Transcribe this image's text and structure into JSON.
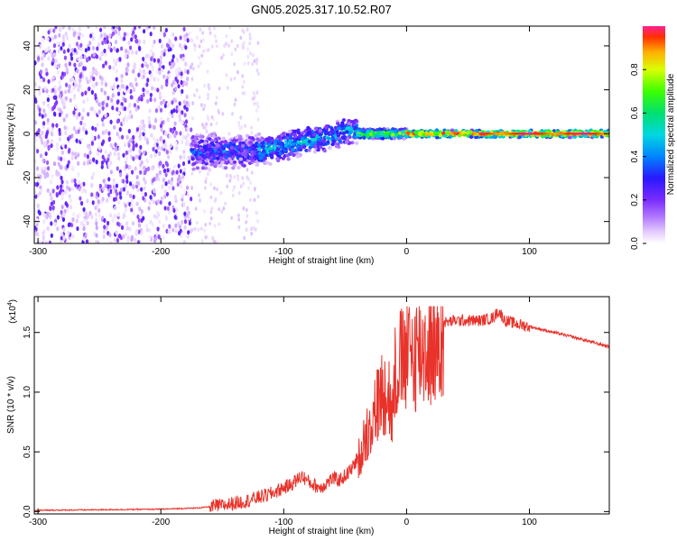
{
  "title": "GN05.2025.317.10.52.R07",
  "chart_data": [
    {
      "type": "heatmap",
      "xlabel": "Height of straight line (km)",
      "ylabel": "Frequency (Hz)",
      "xlim": [
        -303,
        165
      ],
      "ylim": [
        -50,
        49
      ],
      "xticks": [
        -300,
        -200,
        -100,
        0,
        100
      ],
      "xtick_labels": [
        "-300",
        "-200",
        "-100",
        "0",
        "100"
      ],
      "yticks": [
        -40,
        -20,
        0,
        20,
        40
      ],
      "ytick_labels": [
        "-40",
        "-20",
        "0",
        "20",
        "40"
      ],
      "colorbar": {
        "label": "Normalized spectral amplitude",
        "range": [
          0,
          1
        ],
        "ticks": [
          0.0,
          0.2,
          0.4,
          0.6,
          0.8
        ],
        "tick_labels": [
          "0.0",
          "0.2",
          "0.4",
          "0.6",
          "0.8"
        ],
        "colormap": [
          "#ffffff",
          "#e6cfff",
          "#b27bff",
          "#7a2cff",
          "#2a18ff",
          "#0084ff",
          "#00d8e0",
          "#00e070",
          "#3cff00",
          "#d8ff00",
          "#ffb000",
          "#ff3000",
          "#ff2090"
        ]
      },
      "regions": [
        {
          "x_range": [
            -303,
            -175
          ],
          "frequency_range": [
            -50,
            49
          ],
          "amplitude": 0.15
        },
        {
          "x_range": [
            -175,
            -120
          ],
          "frequency_center": -8,
          "frequency_width": 14,
          "amplitude": 0.35
        },
        {
          "x_range": [
            -120,
            -40
          ],
          "frequency_center": -2,
          "frequency_width": 12,
          "amplitude": 0.45
        },
        {
          "x_range": [
            -40,
            0
          ],
          "frequency_center": 0,
          "frequency_width": 4,
          "amplitude": 0.7
        },
        {
          "x_range": [
            0,
            165
          ],
          "frequency_center": 0,
          "frequency_width": 3,
          "amplitude": 0.9
        }
      ],
      "grid": false
    },
    {
      "type": "line",
      "xlabel": "Height of straight line (km)",
      "ylabel": "SNR (10 * v/v)",
      "y_multiplier_label": "(x10",
      "y_multiplier_exp": "4",
      "y_multiplier_close": ")",
      "xlim": [
        -303,
        165
      ],
      "ylim": [
        -0.02,
        1.8
      ],
      "xticks": [
        -300,
        -200,
        -100,
        0,
        100
      ],
      "xtick_labels": [
        "-300",
        "-200",
        "-100",
        "0",
        "100"
      ],
      "yticks": [
        0.0,
        0.5,
        1.0,
        1.5
      ],
      "ytick_labels": [
        "0.0",
        "0.5",
        "1.0",
        "1.5"
      ],
      "color": "#e8322a",
      "series": [
        {
          "x": [
            -303,
            -250,
            -200,
            -170,
            -150,
            -140,
            -130,
            -120,
            -110,
            -100,
            -95,
            -90,
            -85,
            -80,
            -75,
            -70,
            -65,
            -60,
            -55,
            -50,
            -45,
            -40,
            -35,
            -30,
            -25,
            -20,
            -15,
            -12,
            -10,
            -8,
            -5,
            0,
            10,
            20,
            30,
            40,
            50,
            60,
            70,
            75,
            80,
            90,
            100,
            120,
            140,
            165
          ],
          "y": [
            0.01,
            0.015,
            0.02,
            0.03,
            0.05,
            0.07,
            0.09,
            0.12,
            0.15,
            0.2,
            0.22,
            0.26,
            0.3,
            0.25,
            0.22,
            0.2,
            0.24,
            0.28,
            0.26,
            0.3,
            0.35,
            0.45,
            0.65,
            0.8,
            0.95,
            1.1,
            1.2,
            0.8,
            1.25,
            1.35,
            1.38,
            1.42,
            1.5,
            1.55,
            1.58,
            1.6,
            1.6,
            1.6,
            1.62,
            1.68,
            1.6,
            1.57,
            1.55,
            1.5,
            1.45,
            1.38
          ]
        }
      ],
      "grid": false
    }
  ]
}
